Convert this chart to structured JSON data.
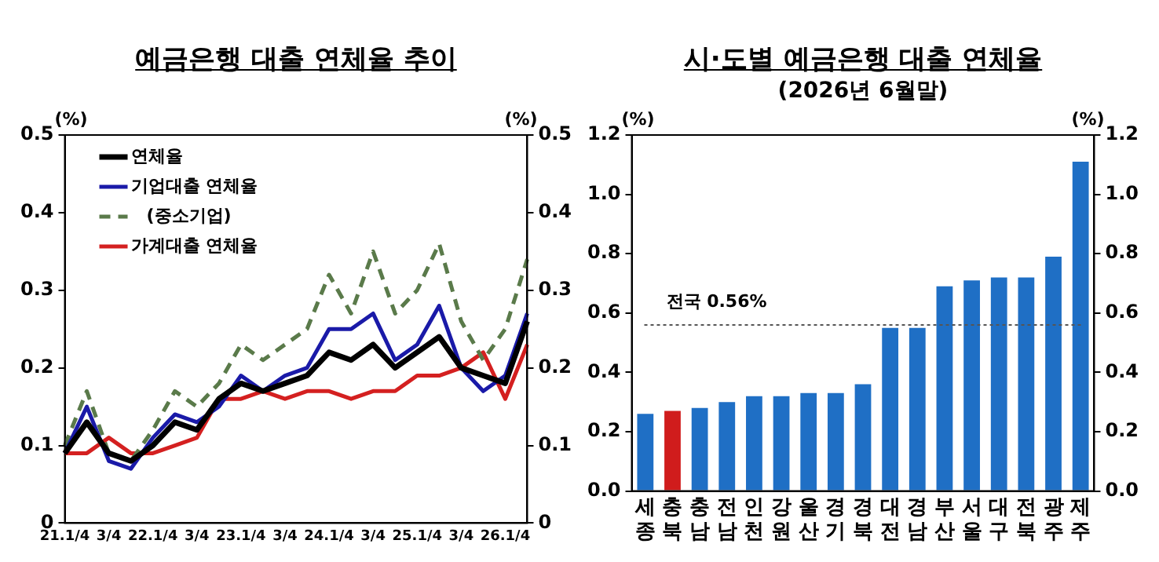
{
  "chart_data": [
    {
      "type": "line",
      "title": "예금은행 대출 연체율 추이",
      "ylabel": "(%)",
      "y2label": "(%)",
      "categories": [
        "21.1/4",
        null,
        "3/4",
        null,
        "22.1/4",
        null,
        "3/4",
        null,
        "23.1/4",
        null,
        "3/4",
        null,
        "24.1/4",
        null,
        "3/4",
        null,
        "25.1/4",
        null,
        "3/4",
        null,
        "26.1/4",
        null
      ],
      "series": [
        {
          "name": "연체율",
          "color": "#000000",
          "values": [
            0.09,
            0.13,
            0.09,
            0.08,
            0.1,
            0.13,
            0.12,
            0.16,
            0.18,
            0.17,
            0.18,
            0.19,
            0.22,
            0.21,
            0.23,
            0.2,
            0.22,
            0.24,
            0.2,
            0.19,
            0.18,
            0.26
          ]
        },
        {
          "name": "기업대출 연체율",
          "color": "#1a1aa8",
          "values": [
            0.09,
            0.15,
            0.08,
            0.07,
            0.11,
            0.14,
            0.13,
            0.15,
            0.19,
            0.17,
            0.19,
            0.2,
            0.25,
            0.25,
            0.27,
            0.21,
            0.23,
            0.28,
            0.2,
            0.17,
            0.19,
            0.27
          ]
        },
        {
          "name": "(중소기업)",
          "color": "#5a7a4a",
          "line_style": "dashed",
          "values": [
            0.1,
            0.17,
            0.09,
            0.08,
            0.12,
            0.17,
            0.15,
            0.18,
            0.23,
            0.21,
            0.23,
            0.25,
            0.32,
            0.27,
            0.35,
            0.27,
            0.3,
            0.36,
            0.26,
            0.21,
            0.25,
            0.34
          ]
        },
        {
          "name": "가계대출 연체율",
          "color": "#d42020",
          "values": [
            0.09,
            0.09,
            0.11,
            0.09,
            0.09,
            0.1,
            0.11,
            0.16,
            0.16,
            0.17,
            0.16,
            0.17,
            0.17,
            0.16,
            0.17,
            0.17,
            0.19,
            0.19,
            0.2,
            0.22,
            0.16,
            0.23
          ]
        }
      ],
      "ylim": [
        0,
        0.5
      ],
      "yticks": [
        0,
        0.1,
        0.2,
        0.3,
        0.4,
        0.5
      ],
      "y2lim": [
        0,
        0.5
      ],
      "y2ticks": [
        0,
        0.1,
        0.2,
        0.3,
        0.4,
        0.5
      ],
      "grid": false,
      "legend": "top left",
      "marker": "none"
    },
    {
      "type": "bar",
      "title": "시·도별 예금은행 대출 연체율",
      "subtitle": "(2026년 6월말)",
      "ylabel": "(%)",
      "y2label": "(%)",
      "categories": [
        "세종",
        "충북",
        "충남",
        "전남",
        "인천",
        "강원",
        "울산",
        "경기",
        "경북",
        "대전",
        "경남",
        "부산",
        "서울",
        "대구",
        "전북",
        "광주",
        "제주"
      ],
      "values": [
        0.26,
        0.27,
        0.28,
        0.3,
        0.32,
        0.32,
        0.33,
        0.33,
        0.36,
        0.55,
        0.55,
        0.69,
        0.71,
        0.72,
        0.72,
        0.79,
        1.11
      ],
      "colors": [
        "#1f6fc5",
        "#d01c1c",
        "#1f6fc5",
        "#1f6fc5",
        "#1f6fc5",
        "#1f6fc5",
        "#1f6fc5",
        "#1f6fc5",
        "#1f6fc5",
        "#1f6fc5",
        "#1f6fc5",
        "#1f6fc5",
        "#1f6fc5",
        "#1f6fc5",
        "#1f6fc5",
        "#1f6fc5",
        "#1f6fc5"
      ],
      "ref_lines": [
        {
          "axis": "y",
          "value": 0.56,
          "label": "전국 0.56%",
          "color": "#555555",
          "line_style": "dotted"
        }
      ],
      "ylim": [
        0,
        1.2
      ],
      "yticks": [
        {
          "value": 0,
          "label": "0.0"
        },
        0.2,
        0.4,
        0.6,
        0.8,
        {
          "value": 1,
          "label": "1.0"
        },
        {
          "value": 1.2,
          "label": "1.2"
        }
      ],
      "y2lim": [
        0,
        1.2
      ],
      "y2ticks": [
        {
          "value": 0,
          "label": "0.0"
        },
        0.2,
        0.4,
        0.6,
        0.8,
        {
          "value": 1,
          "label": "1.0"
        },
        {
          "value": 1.2,
          "label": "1.2"
        }
      ],
      "grid": false,
      "legend": false
    }
  ]
}
